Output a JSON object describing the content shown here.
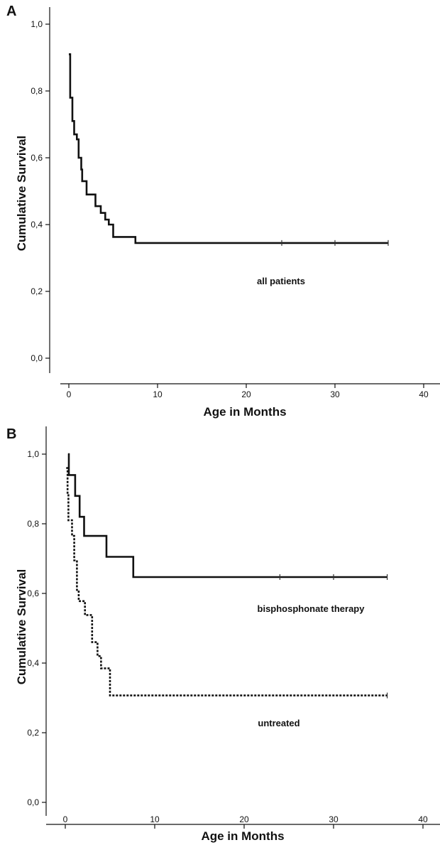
{
  "chart_data": [
    {
      "panel": "A",
      "type": "line",
      "subtype": "kaplan-meier step",
      "xlabel": "Age in Months",
      "ylabel": "Cumulative Survival",
      "xlim": [
        -1.5,
        42
      ],
      "ylim": [
        -0.04,
        1.06
      ],
      "xticks": [
        0,
        10,
        20,
        30,
        40
      ],
      "yticks": [
        0.0,
        0.2,
        0.4,
        0.6,
        0.8,
        1.0
      ],
      "ytick_labels": [
        "0,0",
        "0,2",
        "0,4",
        "0,6",
        "0,8",
        "1,0"
      ],
      "grid": false,
      "series": [
        {
          "style": "solid",
          "start_time": 0,
          "steps": [
            [
              0.0,
              0.91
            ],
            [
              0.15,
              0.78
            ],
            [
              0.4,
              0.71
            ],
            [
              0.6,
              0.67
            ],
            [
              0.9,
              0.655
            ],
            [
              1.1,
              0.6
            ],
            [
              1.4,
              0.565
            ],
            [
              1.5,
              0.53
            ],
            [
              2.0,
              0.49
            ],
            [
              3.0,
              0.455
            ],
            [
              3.6,
              0.435
            ],
            [
              4.1,
              0.415
            ],
            [
              4.5,
              0.4
            ],
            [
              5.0,
              0.363
            ],
            [
              7.5,
              0.345
            ]
          ],
          "end_time": 36,
          "censored": [
            24,
            30,
            36
          ]
        }
      ],
      "annotations": [
        "all patients"
      ]
    },
    {
      "panel": "B",
      "type": "line",
      "subtype": "kaplan-meier step",
      "xlabel": "Age in Months",
      "ylabel": "Cumulative Survival",
      "xlim": [
        -2,
        42
      ],
      "ylim": [
        -0.04,
        1.06
      ],
      "xticks": [
        0,
        10,
        20,
        30,
        40
      ],
      "yticks": [
        0.0,
        0.2,
        0.4,
        0.6,
        0.8,
        1.0
      ],
      "ytick_labels": [
        "0,0",
        "0,2",
        "0,4",
        "0,6",
        "0,8",
        "1,0"
      ],
      "grid": false,
      "series": [
        {
          "style": "solid",
          "start_time": 0.3,
          "steps": [
            [
              0.3,
              1.0
            ],
            [
              0.4,
              0.94
            ],
            [
              1.1,
              0.88
            ],
            [
              1.6,
              0.82
            ],
            [
              2.1,
              0.765
            ],
            [
              4.6,
              0.705
            ],
            [
              7.6,
              0.647
            ]
          ],
          "end_time": 36,
          "censored": [
            24,
            30,
            36
          ]
        },
        {
          "style": "dotted",
          "start_time": 0.1,
          "steps": [
            [
              0.1,
              0.96
            ],
            [
              0.25,
              0.885
            ],
            [
              0.35,
              0.81
            ],
            [
              0.75,
              0.765
            ],
            [
              1.0,
              0.695
            ],
            [
              1.3,
              0.61
            ],
            [
              1.5,
              0.578
            ],
            [
              2.2,
              0.538
            ],
            [
              3.0,
              0.46
            ],
            [
              3.6,
              0.42
            ],
            [
              4.0,
              0.385
            ],
            [
              5.0,
              0.307
            ]
          ],
          "end_time": 36,
          "censored": [
            36
          ]
        }
      ],
      "annotations": [
        "bisphosphonate therapy",
        "untreated"
      ]
    }
  ]
}
